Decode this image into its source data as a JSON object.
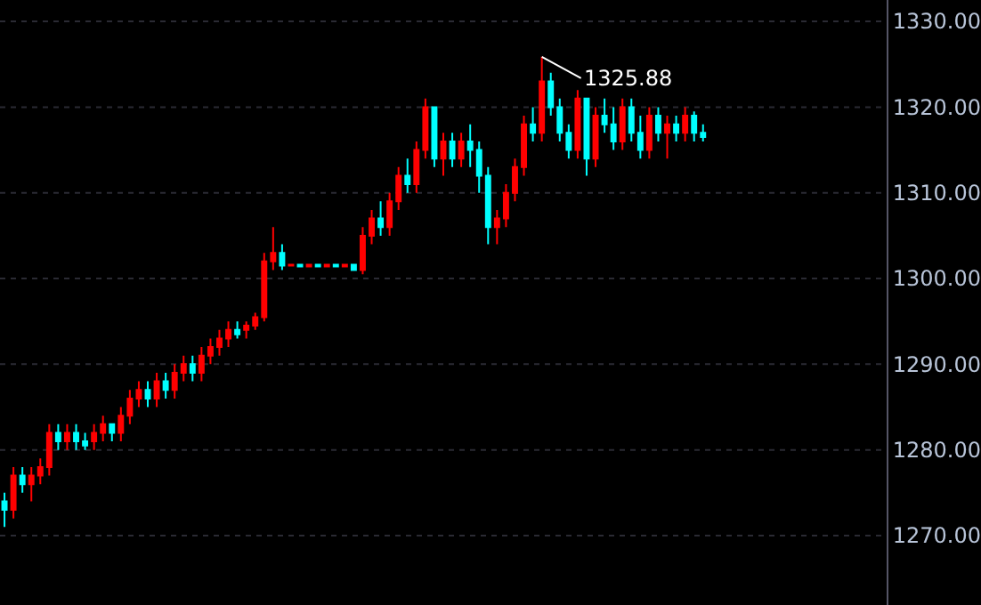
{
  "chart_data": {
    "type": "candlestick",
    "categories": [
      null,
      null,
      null,
      null,
      null,
      null,
      null,
      null,
      null,
      null,
      null,
      null,
      null,
      null,
      null,
      null,
      null,
      null,
      null,
      null,
      null,
      null,
      null,
      null,
      null,
      null,
      null,
      null,
      null,
      null,
      null,
      null,
      null,
      null,
      null,
      null,
      null,
      null,
      null,
      null,
      null,
      null,
      null,
      null,
      null,
      null,
      null,
      null,
      null,
      null,
      null,
      null,
      null,
      null,
      null,
      null,
      null,
      null,
      null,
      null,
      null,
      null,
      null,
      null,
      null,
      null,
      null,
      null,
      null,
      null,
      null,
      null,
      null,
      null,
      null,
      null,
      null,
      null,
      null,
      null,
      null,
      null,
      null,
      null,
      null,
      null,
      null,
      null,
      null,
      null,
      null,
      null,
      null,
      null,
      null,
      null,
      null,
      null,
      null
    ],
    "ohlc": [
      [
        1274,
        1275,
        1271,
        1273
      ],
      [
        1273,
        1278,
        1272,
        1277
      ],
      [
        1277,
        1278,
        1275,
        1276
      ],
      [
        1276,
        1278,
        1274,
        1277
      ],
      [
        1277,
        1279,
        1276,
        1278
      ],
      [
        1278,
        1283,
        1277,
        1282
      ],
      [
        1282,
        1283,
        1280,
        1281
      ],
      [
        1281,
        1283,
        1280,
        1282
      ],
      [
        1282,
        1283,
        1280,
        1281
      ],
      [
        1281,
        1282,
        1280,
        1280.5
      ],
      [
        1281,
        1283,
        1280,
        1282
      ],
      [
        1282,
        1284,
        1281,
        1283
      ],
      [
        1283,
        1283,
        1281,
        1282
      ],
      [
        1282,
        1285,
        1281,
        1284
      ],
      [
        1284,
        1287,
        1283,
        1286
      ],
      [
        1286,
        1288,
        1285,
        1287
      ],
      [
        1287,
        1288,
        1285,
        1286
      ],
      [
        1286,
        1289,
        1285,
        1288
      ],
      [
        1288,
        1289,
        1286,
        1287
      ],
      [
        1287,
        1290,
        1286,
        1289
      ],
      [
        1289,
        1291,
        1288,
        1290
      ],
      [
        1290,
        1291,
        1288,
        1289
      ],
      [
        1289,
        1292,
        1288,
        1291
      ],
      [
        1291,
        1293,
        1290,
        1292
      ],
      [
        1292,
        1294,
        1291,
        1293
      ],
      [
        1293,
        1295,
        1292,
        1294
      ],
      [
        1294,
        1295,
        1293,
        1293.5
      ],
      [
        1294,
        1295,
        1293,
        1294.5
      ],
      [
        1294.5,
        1296,
        1294,
        1295.5
      ],
      [
        1295.5,
        1303,
        1295,
        1302
      ],
      [
        1302,
        1306,
        1301,
        1303
      ],
      [
        1303,
        1304,
        1301,
        1301.5
      ],
      [
        1301.5,
        1301.6,
        1301.4,
        1301.6
      ],
      [
        1301.6,
        1301.6,
        1301.4,
        1301.4
      ],
      [
        1301.4,
        1301.6,
        1301.4,
        1301.6
      ],
      [
        1301.6,
        1301.6,
        1301.4,
        1301.4
      ],
      [
        1301.4,
        1301.6,
        1301.4,
        1301.6
      ],
      [
        1301.6,
        1301.6,
        1301.4,
        1301.4
      ],
      [
        1301.4,
        1301.6,
        1301.4,
        1301.6
      ],
      [
        1301.6,
        1301.6,
        1301,
        1301
      ],
      [
        1301,
        1306,
        1300.5,
        1305
      ],
      [
        1305,
        1308,
        1304,
        1307
      ],
      [
        1307,
        1309,
        1305,
        1306
      ],
      [
        1306,
        1310,
        1305,
        1309
      ],
      [
        1309,
        1313,
        1308,
        1312
      ],
      [
        1312,
        1314,
        1310,
        1311
      ],
      [
        1311,
        1316,
        1310,
        1315
      ],
      [
        1315,
        1321,
        1314,
        1320
      ],
      [
        1320,
        1320,
        1313,
        1314
      ],
      [
        1314,
        1317,
        1312,
        1316
      ],
      [
        1316,
        1317,
        1313,
        1314
      ],
      [
        1314,
        1317,
        1313,
        1316
      ],
      [
        1316,
        1318,
        1313,
        1315
      ],
      [
        1315,
        1316,
        1310,
        1312
      ],
      [
        1312,
        1313,
        1304,
        1306
      ],
      [
        1306,
        1308,
        1304,
        1307
      ],
      [
        1307,
        1311,
        1306,
        1310
      ],
      [
        1310,
        1314,
        1309,
        1313
      ],
      [
        1313,
        1319,
        1312,
        1318
      ],
      [
        1318,
        1320,
        1316,
        1317
      ],
      [
        1317,
        1325.88,
        1316,
        1323
      ],
      [
        1323,
        1324,
        1319,
        1320
      ],
      [
        1320,
        1321,
        1316,
        1317
      ],
      [
        1317,
        1318,
        1314,
        1315
      ],
      [
        1315,
        1322,
        1314,
        1321
      ],
      [
        1321,
        1321,
        1312,
        1314
      ],
      [
        1314,
        1320,
        1313,
        1319
      ],
      [
        1319,
        1321,
        1317,
        1318
      ],
      [
        1318,
        1320,
        1315,
        1316
      ],
      [
        1316,
        1321,
        1315,
        1320
      ],
      [
        1320,
        1321,
        1316,
        1317
      ],
      [
        1317,
        1319,
        1314,
        1315
      ],
      [
        1315,
        1320,
        1314,
        1319
      ],
      [
        1319,
        1320,
        1316,
        1317
      ],
      [
        1317,
        1319,
        1314,
        1318
      ],
      [
        1318,
        1319,
        1316,
        1317
      ],
      [
        1317,
        1320,
        1316,
        1319
      ],
      [
        1319,
        1319.5,
        1316,
        1317
      ],
      [
        1317,
        1318,
        1316,
        1316.5
      ],
      null,
      null,
      null,
      null,
      null,
      null,
      null,
      null,
      null,
      null,
      null,
      null,
      null,
      null,
      null,
      null,
      null,
      null,
      null,
      null
    ],
    "colors": [
      "#00ffff",
      "#ff0000",
      "#00ffff",
      "#ff0000",
      "#ff0000",
      "#ff0000",
      "#00ffff",
      "#ff0000",
      "#00ffff",
      "#00ffff",
      "#ff0000",
      "#ff0000",
      "#00ffff",
      "#ff0000",
      "#ff0000",
      "#ff0000",
      "#00ffff",
      "#ff0000",
      "#00ffff",
      "#ff0000",
      "#ff0000",
      "#00ffff",
      "#ff0000",
      "#ff0000",
      "#ff0000",
      "#ff0000",
      "#00ffff",
      "#ff0000",
      "#ff0000",
      "#ff0000",
      "#ff0000",
      "#00ffff",
      "#ff0000",
      "#00ffff",
      "#ff0000",
      "#00ffff",
      "#ff0000",
      "#00ffff",
      "#ff0000",
      "#00ffff",
      "#ff0000",
      "#ff0000",
      "#00ffff",
      "#ff0000",
      "#ff0000",
      "#00ffff",
      "#ff0000",
      "#ff0000",
      "#00ffff",
      "#ff0000",
      "#00ffff",
      "#ff0000",
      "#00ffff",
      "#00ffff",
      "#00ffff",
      "#ff0000",
      "#ff0000",
      "#ff0000",
      "#ff0000",
      "#00ffff",
      "#ff0000",
      "#00ffff",
      "#00ffff",
      "#00ffff",
      "#ff0000",
      "#00ffff",
      "#ff0000",
      "#00ffff",
      "#00ffff",
      "#ff0000",
      "#00ffff",
      "#00ffff",
      "#ff0000",
      "#00ffff",
      "#ff0000",
      "#00ffff",
      "#ff0000",
      "#00ffff",
      "#00ffff",
      null,
      null,
      null,
      null,
      null,
      null,
      null,
      null,
      null,
      null,
      null,
      null,
      null,
      null,
      null,
      null,
      null,
      null,
      null,
      null
    ],
    "ylim": [
      1261.9,
      1332.5
    ],
    "yticks": [
      {
        "value": 1270,
        "label": "1270.00"
      },
      {
        "value": 1280,
        "label": "1280.00"
      },
      {
        "value": 1290,
        "label": "1290.00"
      },
      {
        "value": 1300,
        "label": "1300.00"
      },
      {
        "value": 1310,
        "label": "1310.00"
      },
      {
        "value": 1320,
        "label": "1320.00"
      },
      {
        "value": 1330,
        "label": "1330.00"
      }
    ],
    "grid": "y",
    "annotations": [
      "1325.88"
    ]
  }
}
